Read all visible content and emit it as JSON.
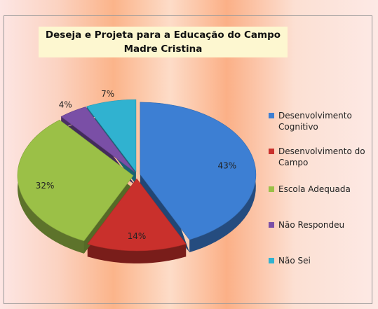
{
  "chart_data": {
    "type": "pie",
    "title": [
      "Deseja e  Projeta para a Educação do Campo",
      "Madre Cristina"
    ],
    "categories": [
      "Desenvolvimento Cognitivo",
      "Desenvolvimento do Campo",
      "Escola Adequada",
      "Não Respondeu",
      "Não Sei"
    ],
    "values": [
      43,
      14,
      32,
      4,
      7
    ],
    "value_labels": [
      "43%",
      "14%",
      "32%",
      "4%",
      "7%"
    ],
    "colors": [
      "#3d7fd3",
      "#c9302c",
      "#9bc047",
      "#7a4fa6",
      "#30b2d0"
    ],
    "legend": "right"
  }
}
